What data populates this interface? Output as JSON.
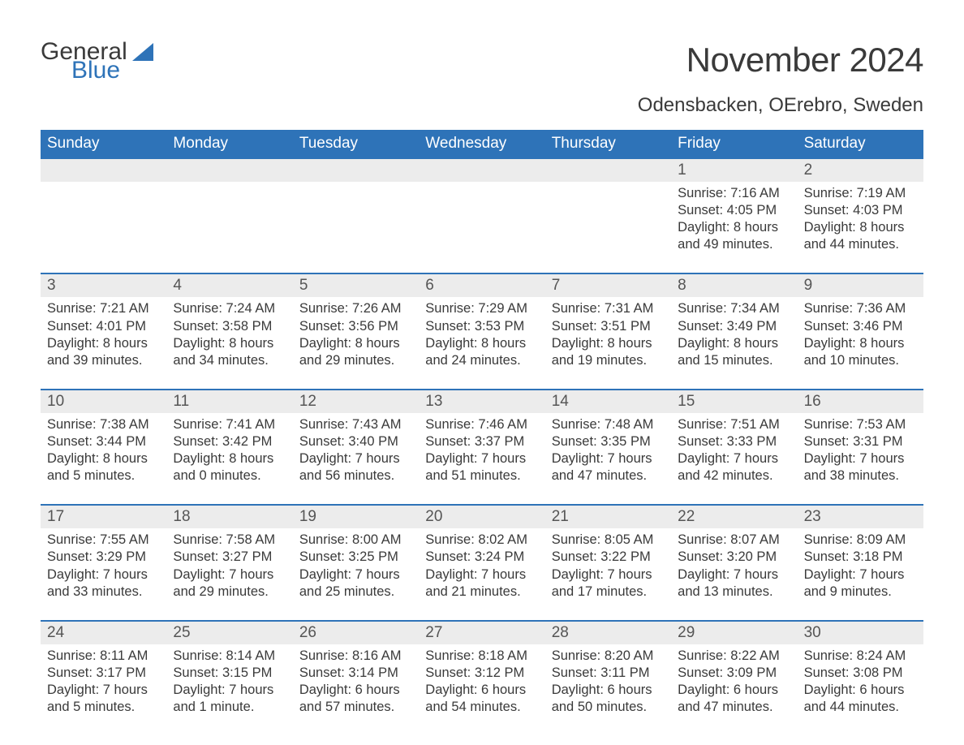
{
  "brand": {
    "line1": "General",
    "line2": "Blue"
  },
  "title": "November 2024",
  "location": "Odensbacken, OErebro, Sweden",
  "colors": {
    "header_bg": "#2e73b8",
    "header_text": "#ffffff",
    "strip_bg": "#ececec",
    "rule": "#2e73b8",
    "body_text": "#3a3a3a",
    "page_bg": "#ffffff"
  },
  "day_of_week": [
    "Sunday",
    "Monday",
    "Tuesday",
    "Wednesday",
    "Thursday",
    "Friday",
    "Saturday"
  ],
  "labels": {
    "sunrise": "Sunrise",
    "sunset": "Sunset",
    "daylight": "Daylight"
  },
  "weeks": [
    [
      null,
      null,
      null,
      null,
      null,
      {
        "n": "1",
        "sr": "7:16 AM",
        "ss": "4:05 PM",
        "dl": "8 hours and 49 minutes."
      },
      {
        "n": "2",
        "sr": "7:19 AM",
        "ss": "4:03 PM",
        "dl": "8 hours and 44 minutes."
      }
    ],
    [
      {
        "n": "3",
        "sr": "7:21 AM",
        "ss": "4:01 PM",
        "dl": "8 hours and 39 minutes."
      },
      {
        "n": "4",
        "sr": "7:24 AM",
        "ss": "3:58 PM",
        "dl": "8 hours and 34 minutes."
      },
      {
        "n": "5",
        "sr": "7:26 AM",
        "ss": "3:56 PM",
        "dl": "8 hours and 29 minutes."
      },
      {
        "n": "6",
        "sr": "7:29 AM",
        "ss": "3:53 PM",
        "dl": "8 hours and 24 minutes."
      },
      {
        "n": "7",
        "sr": "7:31 AM",
        "ss": "3:51 PM",
        "dl": "8 hours and 19 minutes."
      },
      {
        "n": "8",
        "sr": "7:34 AM",
        "ss": "3:49 PM",
        "dl": "8 hours and 15 minutes."
      },
      {
        "n": "9",
        "sr": "7:36 AM",
        "ss": "3:46 PM",
        "dl": "8 hours and 10 minutes."
      }
    ],
    [
      {
        "n": "10",
        "sr": "7:38 AM",
        "ss": "3:44 PM",
        "dl": "8 hours and 5 minutes."
      },
      {
        "n": "11",
        "sr": "7:41 AM",
        "ss": "3:42 PM",
        "dl": "8 hours and 0 minutes."
      },
      {
        "n": "12",
        "sr": "7:43 AM",
        "ss": "3:40 PM",
        "dl": "7 hours and 56 minutes."
      },
      {
        "n": "13",
        "sr": "7:46 AM",
        "ss": "3:37 PM",
        "dl": "7 hours and 51 minutes."
      },
      {
        "n": "14",
        "sr": "7:48 AM",
        "ss": "3:35 PM",
        "dl": "7 hours and 47 minutes."
      },
      {
        "n": "15",
        "sr": "7:51 AM",
        "ss": "3:33 PM",
        "dl": "7 hours and 42 minutes."
      },
      {
        "n": "16",
        "sr": "7:53 AM",
        "ss": "3:31 PM",
        "dl": "7 hours and 38 minutes."
      }
    ],
    [
      {
        "n": "17",
        "sr": "7:55 AM",
        "ss": "3:29 PM",
        "dl": "7 hours and 33 minutes."
      },
      {
        "n": "18",
        "sr": "7:58 AM",
        "ss": "3:27 PM",
        "dl": "7 hours and 29 minutes."
      },
      {
        "n": "19",
        "sr": "8:00 AM",
        "ss": "3:25 PM",
        "dl": "7 hours and 25 minutes."
      },
      {
        "n": "20",
        "sr": "8:02 AM",
        "ss": "3:24 PM",
        "dl": "7 hours and 21 minutes."
      },
      {
        "n": "21",
        "sr": "8:05 AM",
        "ss": "3:22 PM",
        "dl": "7 hours and 17 minutes."
      },
      {
        "n": "22",
        "sr": "8:07 AM",
        "ss": "3:20 PM",
        "dl": "7 hours and 13 minutes."
      },
      {
        "n": "23",
        "sr": "8:09 AM",
        "ss": "3:18 PM",
        "dl": "7 hours and 9 minutes."
      }
    ],
    [
      {
        "n": "24",
        "sr": "8:11 AM",
        "ss": "3:17 PM",
        "dl": "7 hours and 5 minutes."
      },
      {
        "n": "25",
        "sr": "8:14 AM",
        "ss": "3:15 PM",
        "dl": "7 hours and 1 minute."
      },
      {
        "n": "26",
        "sr": "8:16 AM",
        "ss": "3:14 PM",
        "dl": "6 hours and 57 minutes."
      },
      {
        "n": "27",
        "sr": "8:18 AM",
        "ss": "3:12 PM",
        "dl": "6 hours and 54 minutes."
      },
      {
        "n": "28",
        "sr": "8:20 AM",
        "ss": "3:11 PM",
        "dl": "6 hours and 50 minutes."
      },
      {
        "n": "29",
        "sr": "8:22 AM",
        "ss": "3:09 PM",
        "dl": "6 hours and 47 minutes."
      },
      {
        "n": "30",
        "sr": "8:24 AM",
        "ss": "3:08 PM",
        "dl": "6 hours and 44 minutes."
      }
    ]
  ]
}
